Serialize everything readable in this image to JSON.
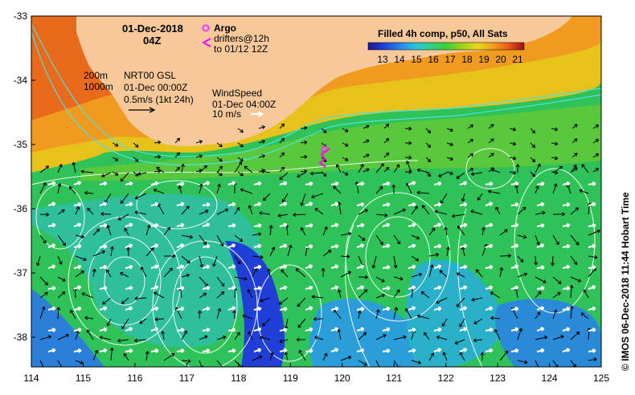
{
  "title": {
    "date": "01-Dec-2018",
    "time": "04Z"
  },
  "legend": {
    "argo": "Argo",
    "drifters_line1": "drifters@12h",
    "drifters_line2": "to 01/12 12Z",
    "argo_color": "#ff33ff",
    "drifter_color": "#ff00ff"
  },
  "isobaths": {
    "a": "200m",
    "b": "1000m"
  },
  "currents": {
    "source": "NRT00 GSL",
    "date": "01-Dec 00:00Z",
    "scale": "0.5m/s (1kt 24h)"
  },
  "wind": {
    "label": "WindSpeed",
    "date": "01-Dec 04:00Z",
    "scale": "10 m/s"
  },
  "colorbar": {
    "title": "Filled 4h comp, p50, All Sats",
    "ticks": [
      "13",
      "14",
      "15",
      "16",
      "17",
      "18",
      "19",
      "20",
      "21"
    ],
    "colors": [
      "#1a1a8c",
      "#1f3fd6",
      "#2a80e8",
      "#29c2e0",
      "#2ed08a",
      "#3bd03b",
      "#9ad21a",
      "#e6d81a",
      "#f0a020",
      "#e85a18",
      "#9c1010"
    ]
  },
  "axes": {
    "y_ticks": [
      "-33",
      "-34",
      "-35",
      "-36",
      "-37",
      "-38"
    ],
    "x_ticks": [
      "114",
      "115",
      "116",
      "117",
      "118",
      "119",
      "120",
      "121",
      "122",
      "123",
      "124",
      "125"
    ]
  },
  "colors": {
    "land": "#f7c99a",
    "frame": "#000000"
  },
  "credit": "© IMOS 06-Dec-2018 11:44 Hobart Time"
}
